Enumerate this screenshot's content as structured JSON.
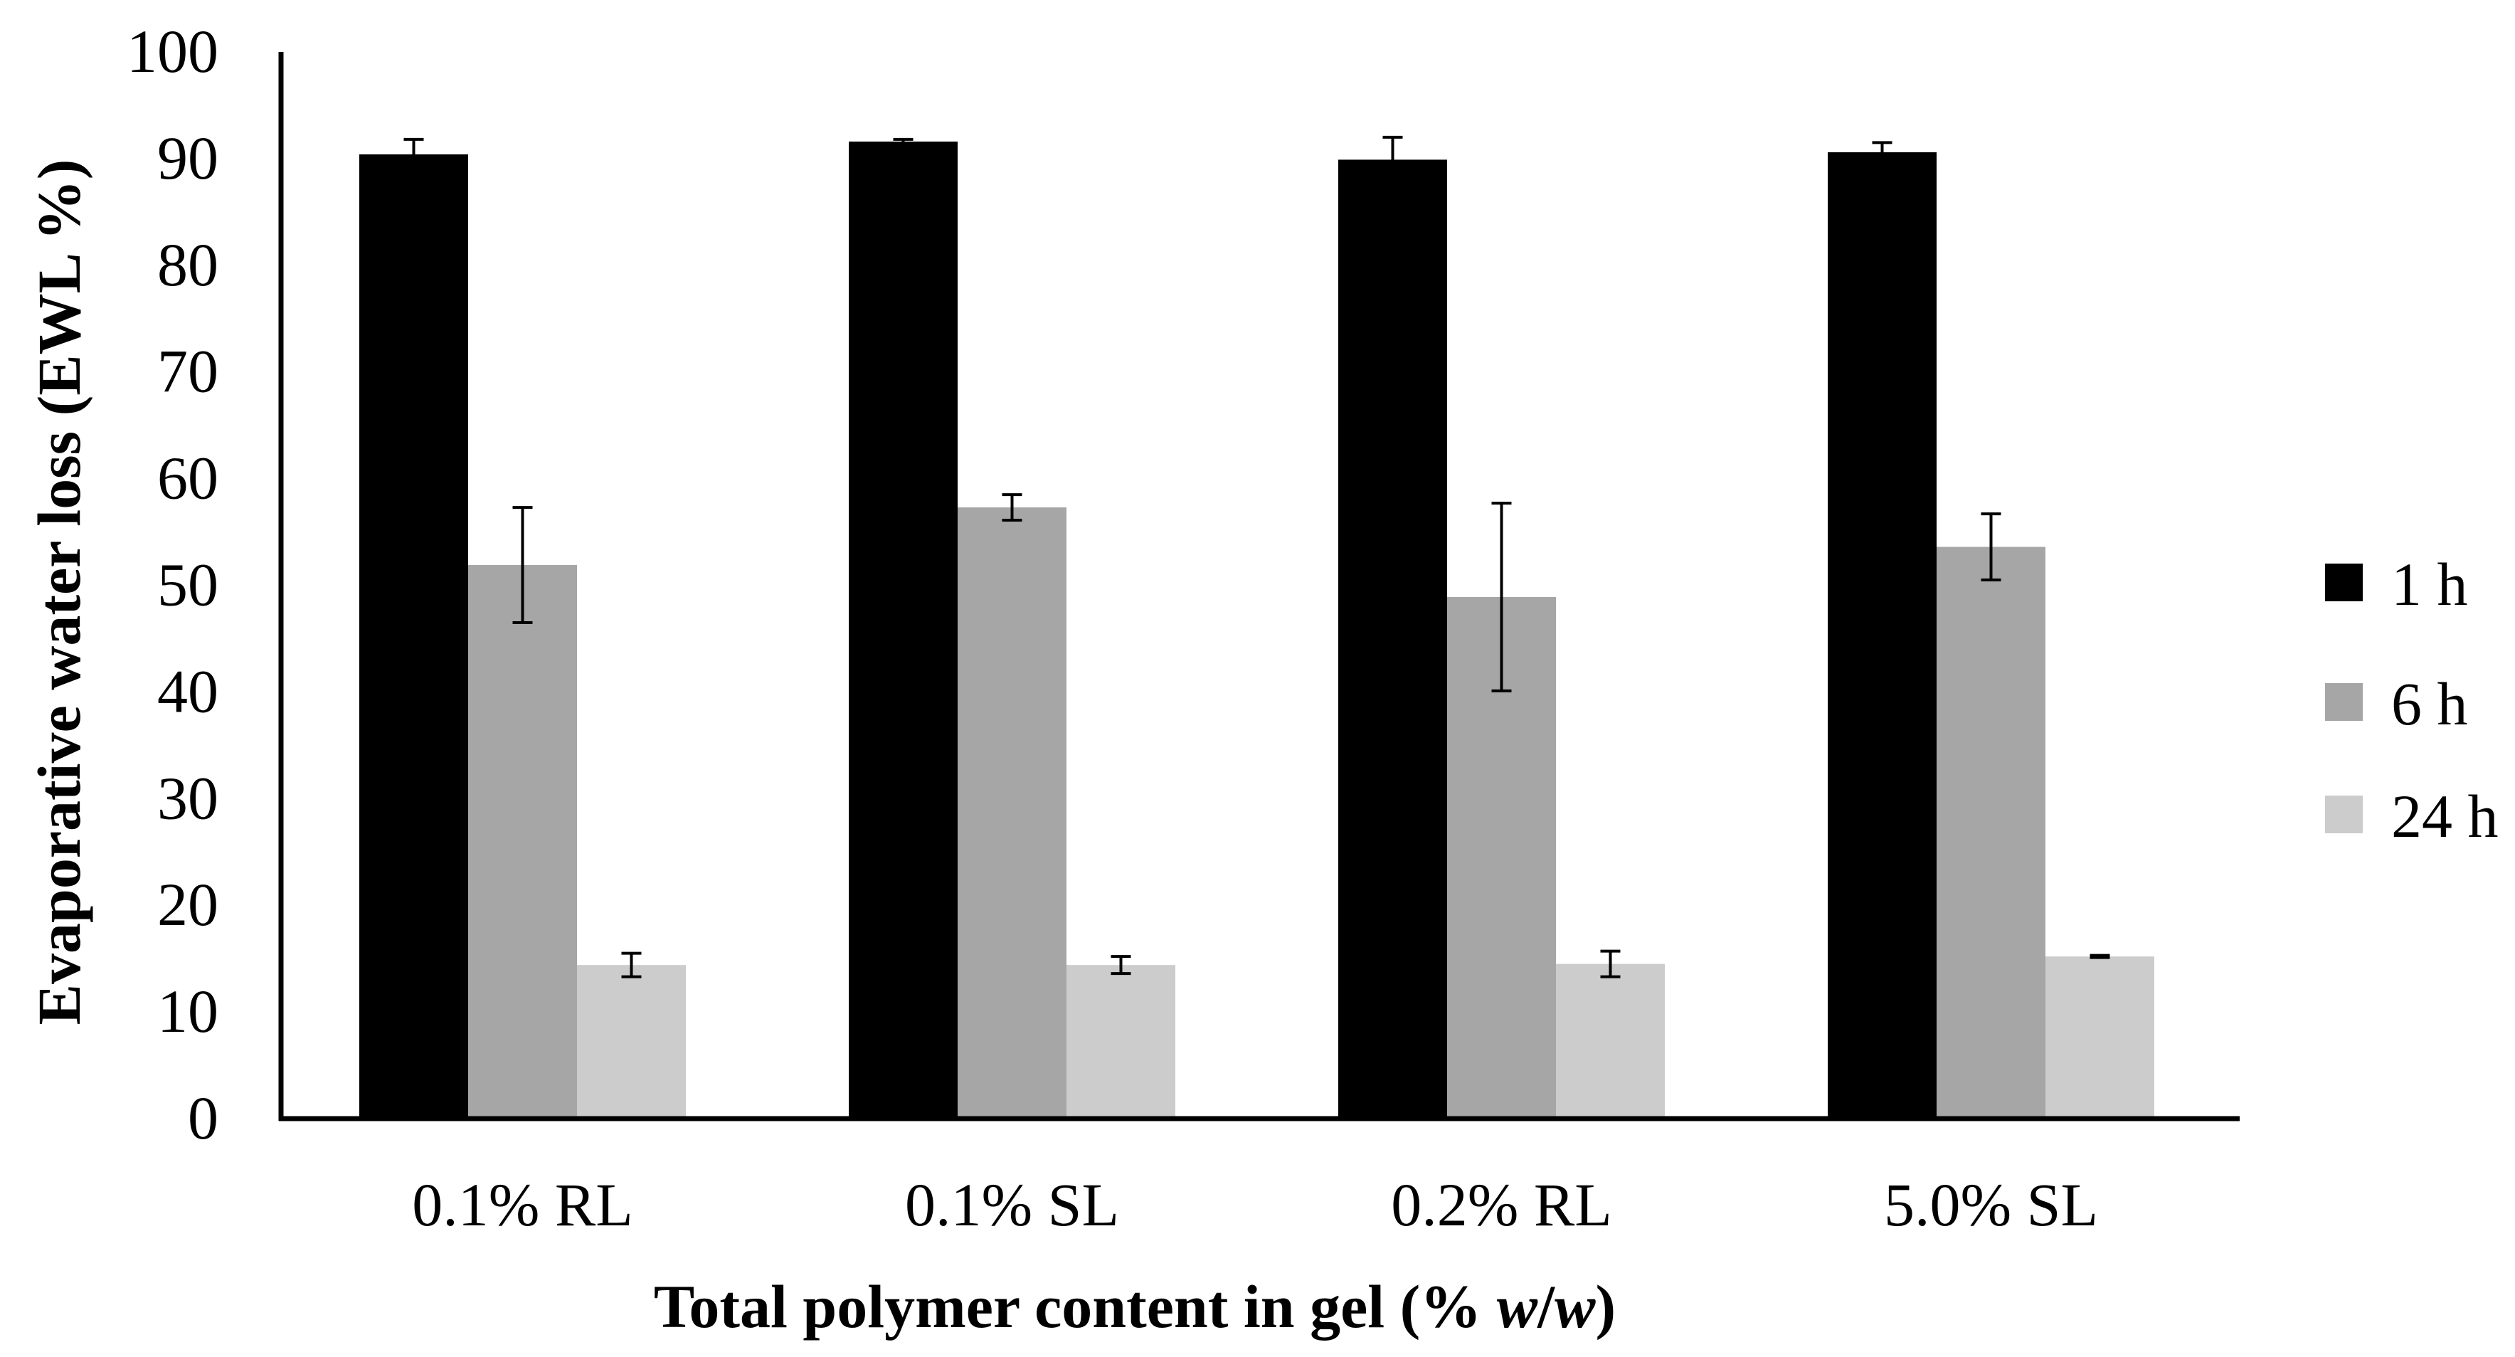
{
  "chart_data": {
    "type": "bar",
    "title": "",
    "xlabel_parts": [
      {
        "text": "Total polymer content in gel (% ",
        "italic": false
      },
      {
        "text": "w",
        "italic": true
      },
      {
        "text": "/",
        "italic": false
      },
      {
        "text": "w",
        "italic": true
      },
      {
        "text": ")",
        "italic": false
      }
    ],
    "xlabel": "Total polymer content in gel (% w/w)",
    "ylabel": "Evaporative water loss (EWL %)",
    "ylim": [
      0,
      100
    ],
    "yticks": [
      0,
      10,
      20,
      30,
      40,
      50,
      60,
      70,
      80,
      90,
      100
    ],
    "grid": false,
    "legend_position": "right",
    "categories": [
      "0.1% RL",
      "0.1% SL",
      "0.2% RL",
      "5.0% SL"
    ],
    "series": [
      {
        "name": "1 h",
        "color": "#000000",
        "values": [
          90.4,
          91.6,
          89.9,
          90.6
        ],
        "errors": [
          1.4,
          0.2,
          2.1,
          0.9
        ]
      },
      {
        "name": "6 h",
        "color": "#a6a6a6",
        "values": [
          51.9,
          57.3,
          48.9,
          53.6
        ],
        "errors": [
          5.4,
          1.2,
          8.8,
          3.1
        ]
      },
      {
        "name": "24 h",
        "color": "#cccccc",
        "values": [
          14.4,
          14.4,
          14.5,
          15.2
        ],
        "errors": [
          1.1,
          0.8,
          1.2,
          0.1
        ]
      }
    ]
  }
}
